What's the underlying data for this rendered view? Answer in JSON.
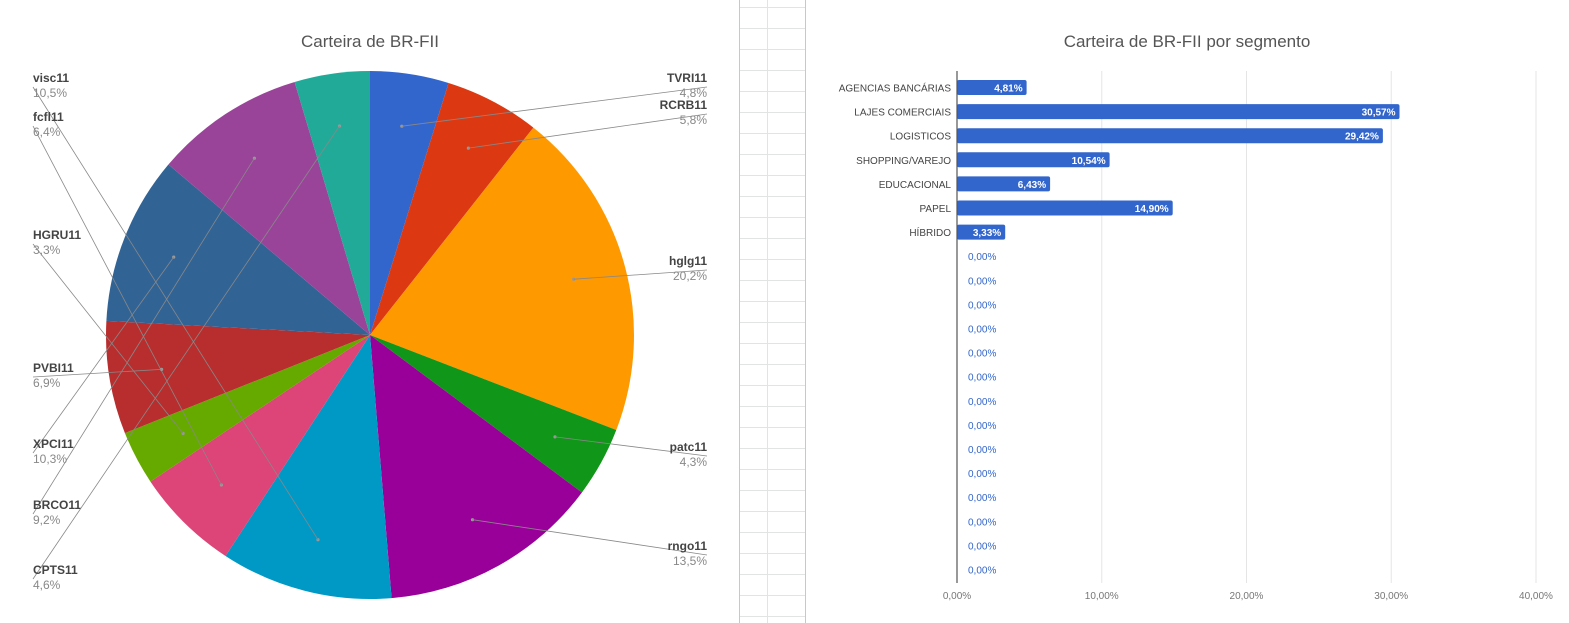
{
  "chart_data": [
    {
      "type": "pie",
      "title": "Carteira de BR-FII",
      "slices": [
        {
          "label": "TVRI11",
          "pct": "4,8%",
          "value": 4.8,
          "color": "#3366cc"
        },
        {
          "label": "RCRB11",
          "pct": "5,8%",
          "value": 5.8,
          "color": "#dc3912"
        },
        {
          "label": "hglg11",
          "pct": "20,2%",
          "value": 20.2,
          "color": "#ff9900"
        },
        {
          "label": "patc11",
          "pct": "4,3%",
          "value": 4.3,
          "color": "#109618"
        },
        {
          "label": "rngo11",
          "pct": "13,5%",
          "value": 13.5,
          "color": "#990099"
        },
        {
          "label": "visc11",
          "pct": "10,5%",
          "value": 10.5,
          "color": "#0099c6"
        },
        {
          "label": "fcfl11",
          "pct": "6,4%",
          "value": 6.4,
          "color": "#dd4477"
        },
        {
          "label": "HGRU11",
          "pct": "3,3%",
          "value": 3.3,
          "color": "#66aa00"
        },
        {
          "label": "PVBI11",
          "pct": "6,9%",
          "value": 6.9,
          "color": "#b82e2e"
        },
        {
          "label": "XPCI11",
          "pct": "10,3%",
          "value": 10.3,
          "color": "#316395"
        },
        {
          "label": "BRCO11",
          "pct": "9,2%",
          "value": 9.2,
          "color": "#994499"
        },
        {
          "label": "CPTS11",
          "pct": "4,6%",
          "value": 4.6,
          "color": "#22aa99"
        }
      ]
    },
    {
      "type": "bar",
      "orientation": "horizontal",
      "title": "Carteira de BR-FII por segmento",
      "bar_color": "#3366cc",
      "categories": [
        "AGENCIAS BANCÁRIAS",
        "LAJES COMERCIAIS",
        "LOGISTICOS",
        "SHOPPING/VAREJO",
        "EDUCACIONAL",
        "PAPEL",
        "HÍBRIDO",
        "",
        "",
        "",
        "",
        "",
        "",
        "",
        "",
        "",
        "",
        "",
        "",
        "",
        ""
      ],
      "values": [
        4.81,
        30.57,
        29.42,
        10.54,
        6.43,
        14.9,
        3.33,
        0,
        0,
        0,
        0,
        0,
        0,
        0,
        0,
        0,
        0,
        0,
        0,
        0,
        0
      ],
      "value_labels": [
        "4,81%",
        "30,57%",
        "29,42%",
        "10,54%",
        "6,43%",
        "14,90%",
        "3,33%",
        "0,00%",
        "0,00%",
        "0,00%",
        "0,00%",
        "0,00%",
        "0,00%",
        "0,00%",
        "0,00%",
        "0,00%",
        "0,00%",
        "0,00%",
        "0,00%",
        "0,00%",
        "0,00%"
      ],
      "xlim": [
        0,
        40
      ],
      "x_ticks": [
        0,
        10,
        20,
        30,
        40
      ],
      "x_tick_labels": [
        "0,00%",
        "10,00%",
        "20,00%",
        "30,00%",
        "40,00%"
      ],
      "grid": true
    }
  ]
}
